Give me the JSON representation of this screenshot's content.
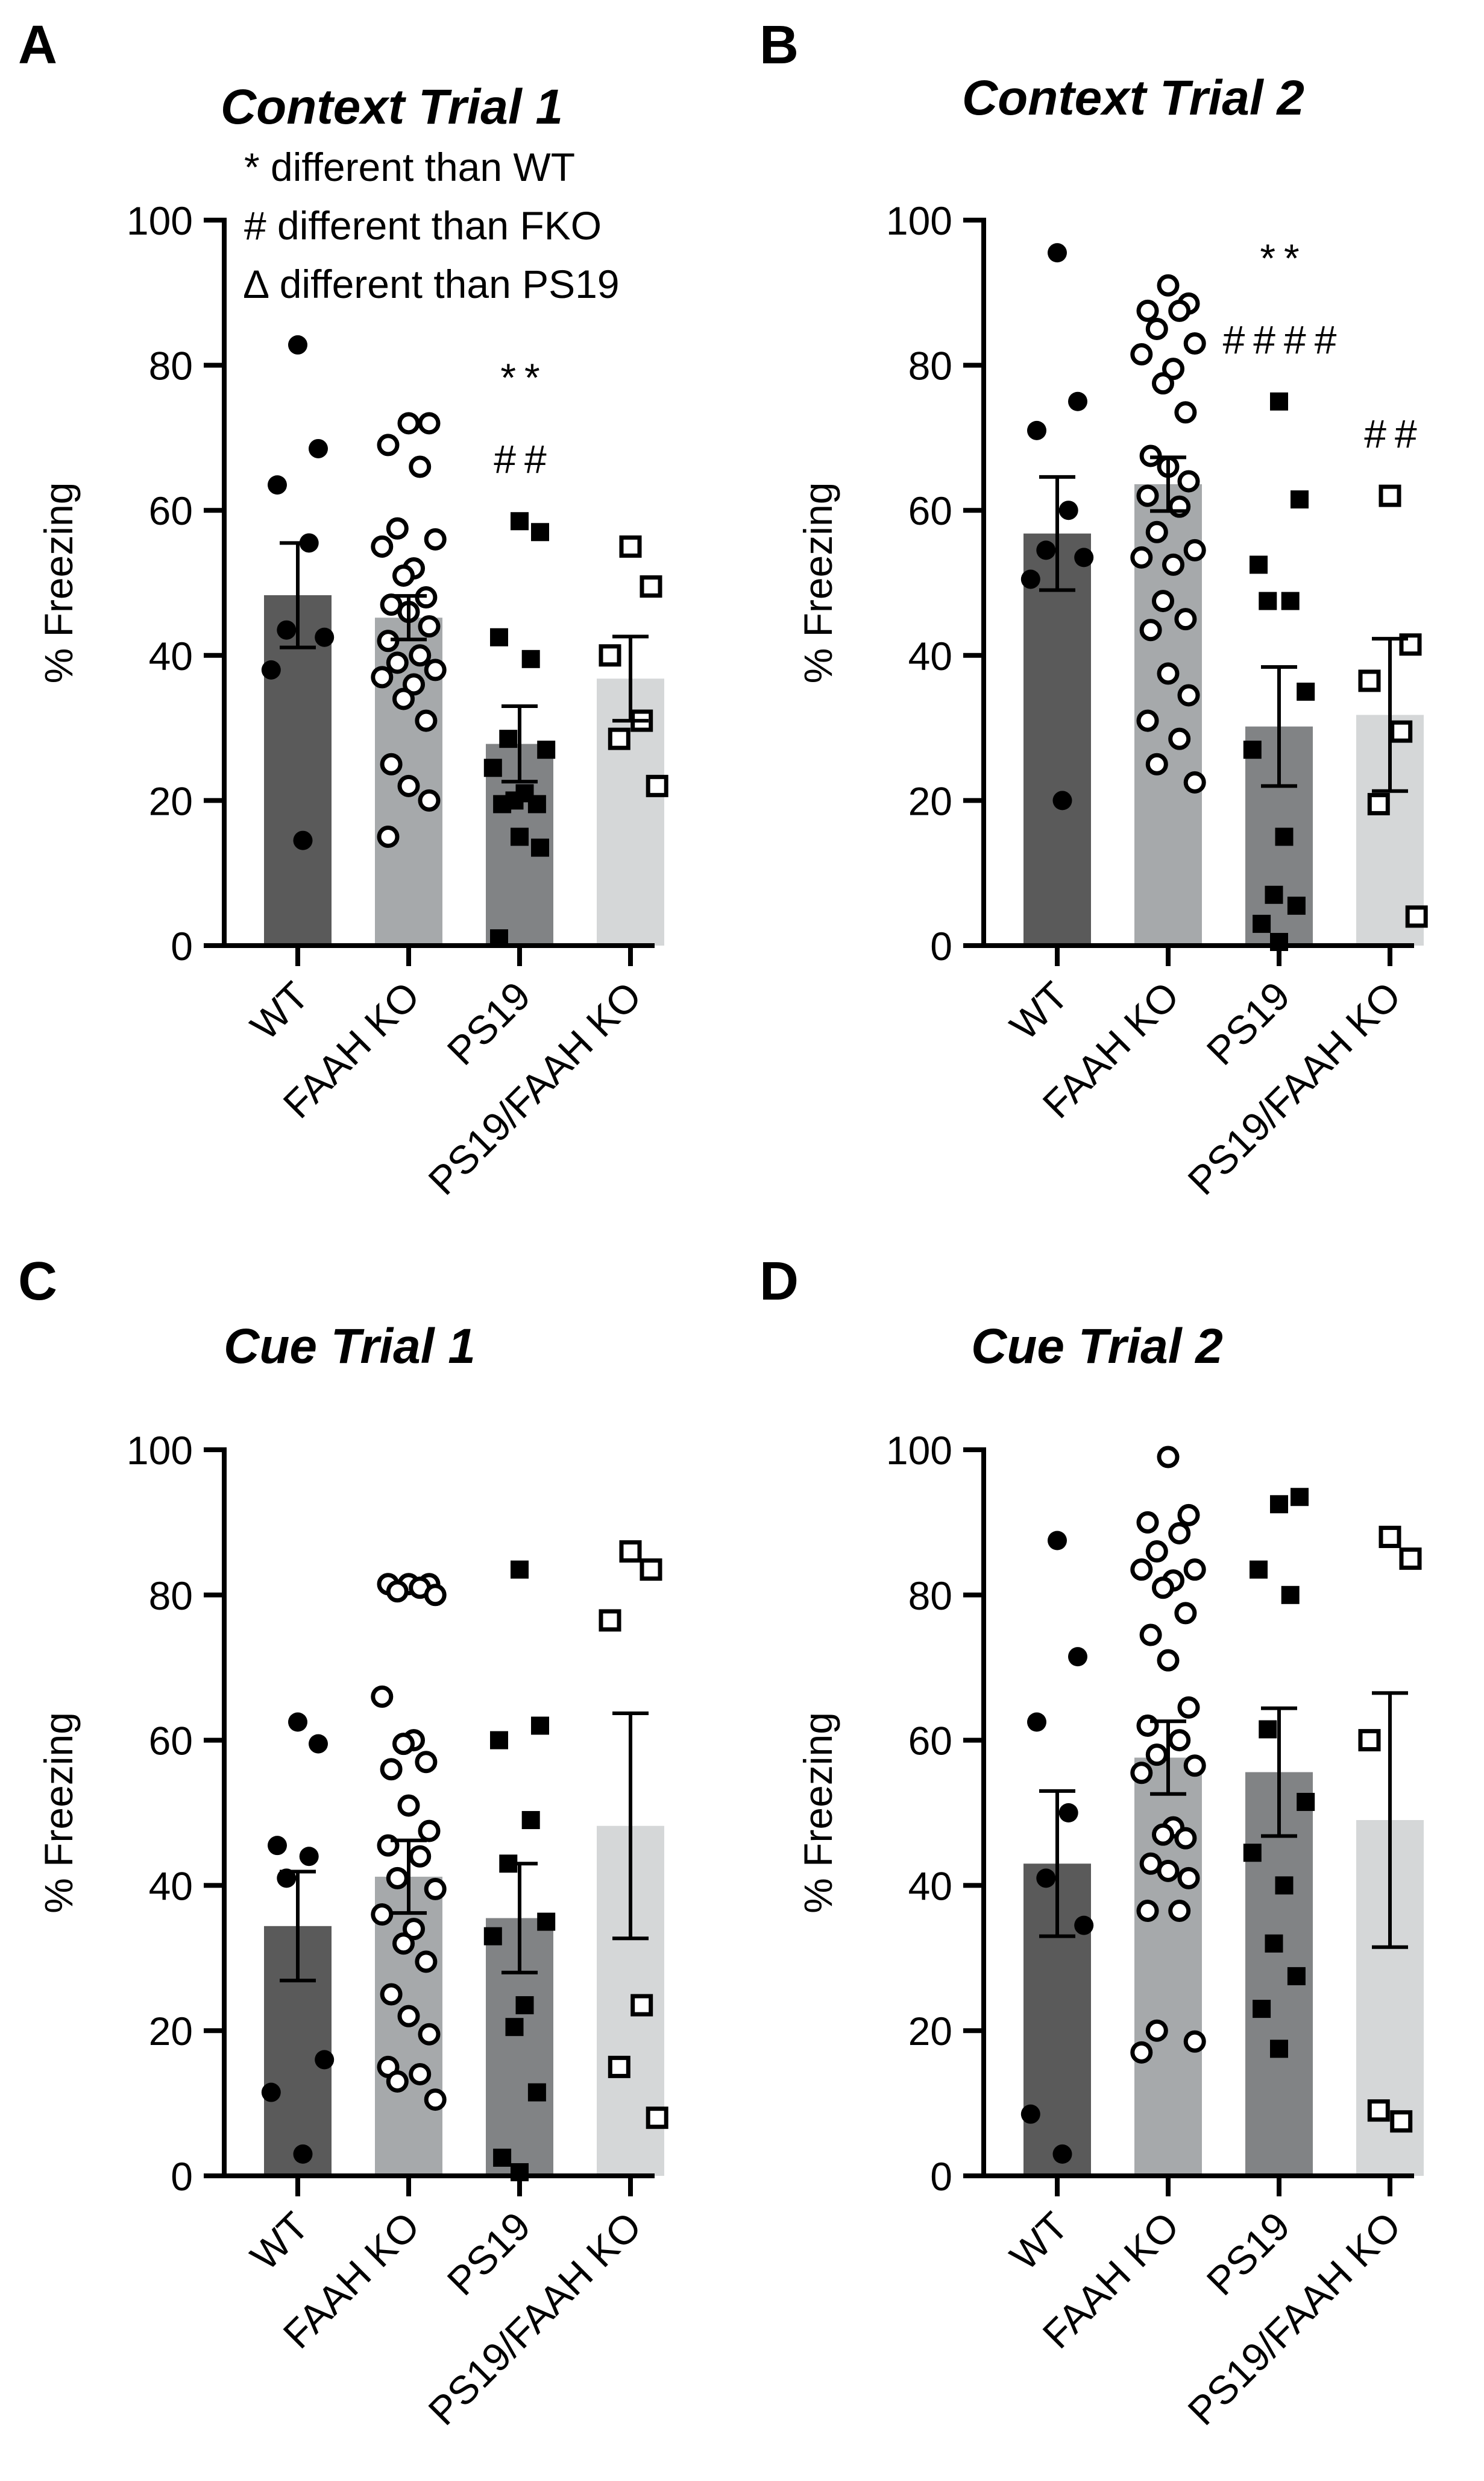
{
  "chart_data": [
    {
      "type": "bar",
      "panel": "A",
      "title": "Context Trial 1",
      "ylabel": "% Freezing",
      "xlabel": "",
      "ylim": [
        0,
        100
      ],
      "yticks": [
        0,
        20,
        40,
        60,
        80,
        100
      ],
      "legend": [
        "* different than WT",
        "# different than FKO",
        "∆ different than PS19"
      ],
      "categories": [
        "WT",
        "FAAH KO",
        "PS19",
        "PS19/FAAH KO"
      ],
      "colors": [
        "#5a5a5a",
        "#a6a9ab",
        "#818385",
        "#d5d7d8"
      ],
      "markers": [
        "circle-filled",
        "circle-open",
        "square-filled",
        "square-open"
      ],
      "values": [
        48.3,
        45.2,
        27.8,
        36.8
      ],
      "sem": [
        7.2,
        3.0,
        5.2,
        5.8
      ],
      "points": [
        [
          82.8,
          68.5,
          63.5,
          55.5,
          43.5,
          42.5,
          38,
          14.5
        ],
        [
          72,
          72,
          69,
          66,
          57.5,
          56,
          55,
          52,
          51,
          48,
          47,
          46,
          44,
          42,
          40,
          39,
          38,
          37,
          36,
          34,
          31,
          25,
          22,
          20,
          15
        ],
        [
          58.5,
          57,
          42.5,
          39.5,
          28.5,
          27,
          24.5,
          21,
          20,
          19.5,
          19.5,
          15,
          13.5,
          1
        ],
        [
          55,
          49.5,
          40,
          31,
          28.5,
          22
        ]
      ],
      "annotations": [
        {
          "category": "PS19",
          "lines": [
            "**",
            "##"
          ]
        }
      ]
    },
    {
      "type": "bar",
      "panel": "B",
      "title": "Context Trial 2",
      "ylabel": "% Freezing",
      "xlabel": "",
      "ylim": [
        0,
        100
      ],
      "yticks": [
        0,
        20,
        40,
        60,
        80,
        100
      ],
      "categories": [
        "WT",
        "FAAH KO",
        "PS19",
        "PS19/FAAH KO"
      ],
      "colors": [
        "#5a5a5a",
        "#a6a9ab",
        "#818385",
        "#d5d7d8"
      ],
      "markers": [
        "circle-filled",
        "circle-open",
        "square-filled",
        "square-open"
      ],
      "values": [
        56.8,
        63.6,
        30.2,
        31.8
      ],
      "sem": [
        7.8,
        3.7,
        8.2,
        10.5
      ],
      "points": [
        [
          95.5,
          75,
          71,
          60,
          54.5,
          53.5,
          50.5,
          20
        ],
        [
          91,
          88.5,
          87.5,
          87.5,
          85,
          83,
          81.5,
          79.5,
          77.5,
          73.5,
          67.5,
          66,
          64,
          62,
          60.5,
          57,
          54.5,
          53.5,
          52.5,
          47.5,
          45,
          43.5,
          37.5,
          34.5,
          31,
          28.5,
          25,
          22.5
        ],
        [
          75,
          61.5,
          52.5,
          47.5,
          47.5,
          35,
          27,
          15,
          7,
          5.5,
          3,
          0.5
        ],
        [
          62,
          41.5,
          36.5,
          29.5,
          19.5,
          4
        ]
      ],
      "annotations": [
        {
          "category": "PS19",
          "lines": [
            "**",
            "####"
          ]
        },
        {
          "category": "PS19/FAAH KO",
          "lines": [
            "##"
          ]
        }
      ]
    },
    {
      "type": "bar",
      "panel": "C",
      "title": "Cue Trial 1",
      "ylabel": "% Freezing",
      "xlabel": "",
      "ylim": [
        0,
        100
      ],
      "yticks": [
        0,
        20,
        40,
        60,
        80,
        100
      ],
      "categories": [
        "WT",
        "FAAH KO",
        "PS19",
        "PS19/FAAH KO"
      ],
      "colors": [
        "#5a5a5a",
        "#a6a9ab",
        "#818385",
        "#d5d7d8"
      ],
      "markers": [
        "circle-filled",
        "circle-open",
        "square-filled",
        "square-open"
      ],
      "values": [
        34.4,
        41.2,
        35.5,
        48.2
      ],
      "sem": [
        7.5,
        5.0,
        7.5,
        15.5
      ],
      "points": [
        [
          62.5,
          59.5,
          45.5,
          44,
          41,
          16,
          11.5,
          3
        ],
        [
          81.5,
          81.5,
          81.5,
          81,
          80.5,
          80,
          66,
          60,
          59.5,
          57,
          56,
          51,
          47.5,
          45.5,
          44,
          41,
          39.5,
          36,
          34,
          32,
          29.5,
          25,
          22,
          19.5,
          15,
          14,
          13,
          10.5
        ],
        [
          83.5,
          62,
          60,
          49,
          43,
          35,
          33,
          23.5,
          20.5,
          11.5,
          2.5,
          0.5
        ],
        [
          86,
          83.5,
          76.5,
          23.5,
          15,
          8
        ]
      ],
      "annotations": []
    },
    {
      "type": "bar",
      "panel": "D",
      "title": "Cue Trial 2",
      "ylabel": "% Freezing",
      "xlabel": "",
      "ylim": [
        0,
        100
      ],
      "yticks": [
        0,
        20,
        40,
        60,
        80,
        100
      ],
      "categories": [
        "WT",
        "FAAH KO",
        "PS19",
        "PS19/FAAH KO"
      ],
      "colors": [
        "#5a5a5a",
        "#a6a9ab",
        "#818385",
        "#d5d7d8"
      ],
      "markers": [
        "circle-filled",
        "circle-open",
        "square-filled",
        "square-open"
      ],
      "values": [
        43.0,
        57.6,
        55.6,
        49.0
      ],
      "sem": [
        10.0,
        5.0,
        8.8,
        17.5
      ],
      "points": [
        [
          87.5,
          71.5,
          62.5,
          50,
          41,
          34.5,
          8.5,
          3
        ],
        [
          99,
          91,
          90,
          88.5,
          86,
          83.5,
          83.5,
          82,
          81,
          77.5,
          74.5,
          71,
          64.5,
          62,
          60,
          58,
          56.5,
          55.5,
          48,
          47,
          46.5,
          43,
          42,
          41,
          36.5,
          36.5,
          20,
          18.5,
          17
        ],
        [
          92.5,
          93.5,
          83.5,
          80,
          61.5,
          51.5,
          44.5,
          40,
          32,
          27.5,
          23,
          17.5
        ],
        [
          88,
          85,
          60,
          7.5,
          9
        ]
      ],
      "annotations": []
    }
  ]
}
